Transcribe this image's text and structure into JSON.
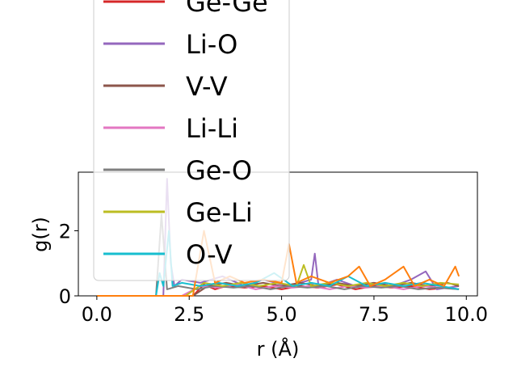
{
  "chart_data": {
    "type": "line",
    "title": "",
    "xlabel": "r (Å)",
    "ylabel": "g(r)",
    "xlim": [
      -0.5,
      10.3
    ],
    "ylim": [
      0,
      3.8
    ],
    "xticks": [
      0.0,
      2.5,
      5.0,
      7.5,
      10.0
    ],
    "xtick_labels": [
      "0.0",
      "2.5",
      "5.0",
      "7.5",
      "10.0"
    ],
    "yticks": [
      0,
      2
    ],
    "ytick_labels": [
      "0",
      "2"
    ],
    "grid": false,
    "legend_position": "upper-left",
    "series": [
      {
        "name": "Ge-Ge",
        "color": "#d62728",
        "x": [
          0,
          1.5,
          2.6,
          2.9,
          3.2,
          3.5,
          4.0,
          4.5,
          5.0,
          5.5,
          6.0,
          6.5,
          7.0,
          7.5,
          8.0,
          8.5,
          9.0,
          9.5,
          9.8
        ],
        "y": [
          0,
          0,
          0,
          0.35,
          0.2,
          0.3,
          0.25,
          0.3,
          0.2,
          0.3,
          0.25,
          0.35,
          0.2,
          0.3,
          0.25,
          0.3,
          0.2,
          0.25,
          0.2
        ]
      },
      {
        "name": "Li-O",
        "color": "#9467bd",
        "x": [
          0,
          1.8,
          1.9,
          2.0,
          2.1,
          2.3,
          2.8,
          3.4,
          4.0,
          4.5,
          5.2,
          5.8,
          5.9,
          6.0,
          6.5,
          7.0,
          7.5,
          8.0,
          8.5,
          8.9,
          9.2,
          9.8
        ],
        "y": [
          0,
          0,
          3.6,
          1.0,
          0.3,
          0.5,
          0.4,
          0.6,
          0.3,
          0.5,
          0.3,
          0.5,
          1.3,
          0.3,
          0.5,
          0.3,
          0.4,
          0.3,
          0.5,
          0.75,
          0.2,
          0.3
        ]
      },
      {
        "name": "V-V",
        "color": "#8c564b",
        "x": [
          0,
          2.6,
          3.0,
          3.5,
          4.0,
          4.5,
          5.0,
          5.5,
          6.0,
          6.5,
          7.0,
          7.5,
          8.0,
          8.5,
          9.0,
          9.5,
          9.8
        ],
        "y": [
          0,
          0,
          0.3,
          0.4,
          0.3,
          0.4,
          0.3,
          0.4,
          0.3,
          0.4,
          0.3,
          0.4,
          0.3,
          0.4,
          0.3,
          0.4,
          0.3
        ]
      },
      {
        "name": "Li-Li",
        "color": "#e377c2",
        "x": [
          0,
          2.3,
          2.8,
          3.3,
          3.8,
          4.3,
          4.8,
          5.3,
          5.8,
          6.3,
          6.8,
          7.3,
          7.8,
          8.3,
          8.8,
          9.3,
          9.8
        ],
        "y": [
          0,
          0,
          0.3,
          0.25,
          0.35,
          0.2,
          0.3,
          0.25,
          0.3,
          0.2,
          0.3,
          0.25,
          0.3,
          0.2,
          0.3,
          0.25,
          0.2
        ]
      },
      {
        "name": "Ge-O",
        "color": "#7f7f7f",
        "x": [
          0,
          1.6,
          1.75,
          1.9,
          2.2,
          2.7,
          3.2,
          3.7,
          4.2,
          4.7,
          5.2,
          5.7,
          6.2,
          6.7,
          7.2,
          7.7,
          8.2,
          8.7,
          9.2,
          9.8
        ],
        "y": [
          0,
          0,
          2.5,
          0.2,
          0.3,
          0.2,
          0.3,
          0.25,
          0.3,
          0.2,
          0.3,
          0.25,
          0.3,
          0.2,
          0.3,
          0.25,
          0.3,
          0.2,
          0.25,
          0.2
        ]
      },
      {
        "name": "Ge-Li",
        "color": "#bcbd22",
        "x": [
          0,
          2.4,
          2.9,
          3.4,
          3.9,
          4.4,
          4.9,
          5.4,
          5.6,
          5.8,
          6.3,
          6.8,
          7.3,
          7.8,
          8.3,
          8.8,
          9.3,
          9.8
        ],
        "y": [
          0,
          0,
          0.4,
          0.3,
          0.4,
          0.3,
          0.4,
          0.3,
          0.95,
          0.3,
          0.4,
          0.3,
          0.4,
          0.3,
          0.4,
          0.3,
          0.4,
          0.35
        ]
      },
      {
        "name": "O-V",
        "color": "#17becf",
        "x": [
          0,
          1.6,
          1.7,
          1.8,
          1.95,
          2.05,
          2.3,
          2.8,
          3.3,
          3.8,
          4.3,
          4.8,
          5.3,
          5.8,
          6.3,
          6.8,
          7.3,
          7.8,
          8.3,
          8.8,
          9.3,
          9.8
        ],
        "y": [
          0,
          0,
          0.7,
          0.3,
          2.0,
          0.3,
          0.4,
          0.3,
          0.4,
          0.3,
          0.4,
          0.7,
          0.3,
          0.4,
          0.3,
          0.6,
          0.3,
          0.4,
          0.3,
          0.4,
          0.3,
          0.2
        ]
      },
      {
        "name": "",
        "color": "#ff7f0e",
        "x": [
          0,
          2.6,
          2.9,
          3.2,
          3.6,
          4.0,
          4.5,
          5.0,
          5.2,
          5.4,
          5.8,
          6.3,
          6.8,
          7.1,
          7.4,
          7.8,
          8.3,
          8.6,
          9.0,
          9.4,
          9.7,
          9.8
        ],
        "y": [
          0,
          0,
          2.0,
          0.4,
          0.6,
          0.4,
          0.5,
          0.4,
          1.6,
          0.4,
          0.6,
          0.4,
          0.6,
          0.9,
          0.3,
          0.5,
          0.9,
          0.3,
          0.5,
          0.3,
          0.9,
          0.6
        ]
      }
    ]
  }
}
